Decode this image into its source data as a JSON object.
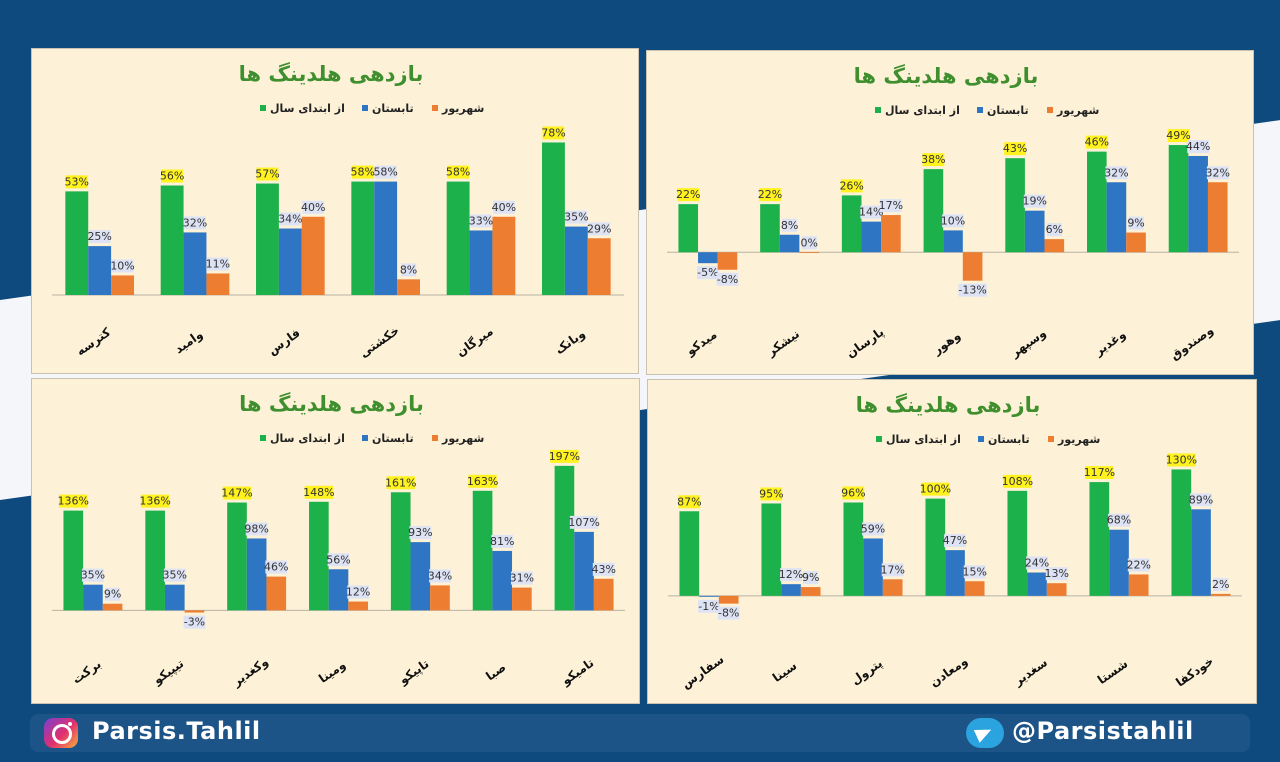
{
  "footer": {
    "instagram_handle": "Parsis.Tahlil",
    "telegram_handle": "@Parsistahlil",
    "instagram_icon": "instagram-icon",
    "telegram_icon": "telegram-icon"
  },
  "colors": {
    "year_to_date": "#1db14b",
    "summer": "#2e75c4",
    "shahrivar": "#ed7d31",
    "title": "#3f8f2f",
    "label_highlight": "#fff21f",
    "label_box": "#dde3f4"
  },
  "chart_data": [
    {
      "type": "bar",
      "title": "بازدهی هلدینگ ها",
      "legend": [
        "از ابتدای سال",
        "تابستان",
        "شهریور"
      ],
      "categories": [
        "کترسه",
        "وامید",
        "فارس",
        "خکشتی",
        "میرگان",
        "وبانک"
      ],
      "series": [
        {
          "name": "از ابتدای سال",
          "values": [
            53,
            56,
            57,
            58,
            58,
            78
          ]
        },
        {
          "name": "تابستان",
          "values": [
            25,
            32,
            34,
            58,
            33,
            35
          ]
        },
        {
          "name": "شهریور",
          "values": [
            10,
            11,
            40,
            8,
            40,
            29
          ]
        }
      ],
      "ylim": [
        0,
        90
      ]
    },
    {
      "type": "bar",
      "title": "بازدهی هلدینگ ها",
      "legend": [
        "از ابتدای سال",
        "تابستان",
        "شهریور"
      ],
      "categories": [
        "میدکو",
        "نیشکر",
        "پارسان",
        "وهور",
        "وسپهر",
        "وغدیر",
        "وصندوق"
      ],
      "series": [
        {
          "name": "از ابتدای سال",
          "values": [
            22,
            22,
            26,
            38,
            43,
            46,
            49
          ]
        },
        {
          "name": "تابستان",
          "values": [
            -5,
            8,
            14,
            10,
            19,
            32,
            44
          ]
        },
        {
          "name": "شهریور",
          "values": [
            -8,
            0,
            17,
            -13,
            6,
            9,
            32
          ]
        }
      ],
      "ylim": [
        -20,
        60
      ]
    },
    {
      "type": "bar",
      "title": "بازدهی هلدینگ ها",
      "legend": [
        "از ابتدای سال",
        "تابستان",
        "شهریور"
      ],
      "categories": [
        "برکت",
        "تیپیکو",
        "وکغدیر",
        "ومینا",
        "تاپیکو",
        "صبا",
        "تامیکو"
      ],
      "series": [
        {
          "name": "از ابتدای سال",
          "values": [
            136,
            136,
            147,
            148,
            161,
            163,
            197
          ]
        },
        {
          "name": "تابستان",
          "values": [
            35,
            35,
            98,
            56,
            93,
            81,
            107
          ]
        },
        {
          "name": "شهریور",
          "values": [
            9,
            -3,
            46,
            12,
            34,
            31,
            43
          ]
        }
      ],
      "ylim": [
        -20,
        220
      ]
    },
    {
      "type": "bar",
      "title": "بازدهی هلدینگ ها",
      "legend": [
        "از ابتدای سال",
        "تابستان",
        "شهریور"
      ],
      "categories": [
        "سفارس",
        "سینا",
        "پترول",
        "ومعادن",
        "سغدیر",
        "شستا",
        "خودکفا"
      ],
      "series": [
        {
          "name": "از ابتدای سال",
          "values": [
            87,
            95,
            96,
            100,
            108,
            117,
            130
          ]
        },
        {
          "name": "تابستان",
          "values": [
            -1,
            12,
            59,
            47,
            24,
            68,
            89
          ]
        },
        {
          "name": "شهریور",
          "values": [
            -8,
            9,
            17,
            15,
            13,
            22,
            2
          ]
        }
      ],
      "ylim": [
        -30,
        150
      ]
    }
  ]
}
